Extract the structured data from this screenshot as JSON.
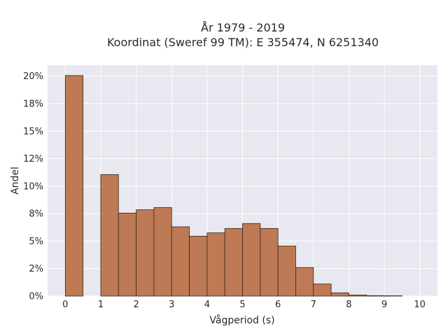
{
  "chart_data": {
    "type": "bar",
    "title_line1": "År 1979 - 2019",
    "title_line2": "Koordinat (Sweref 99 TM): E 355474, N 6251340",
    "xlabel": "Vågperiod (s)",
    "ylabel": "Andel",
    "xlim": [
      -0.5,
      10.5
    ],
    "ylim": [
      0,
      0.21
    ],
    "x_ticks": [
      0,
      1,
      2,
      3,
      4,
      5,
      6,
      7,
      8,
      9,
      10
    ],
    "x_tick_labels": [
      "0",
      "1",
      "2",
      "3",
      "4",
      "5",
      "6",
      "7",
      "8",
      "9",
      "10"
    ],
    "y_ticks": [
      0,
      0.025,
      0.05,
      0.075,
      0.1,
      0.125,
      0.15,
      0.175,
      0.2
    ],
    "y_tick_labels": [
      "0%",
      "2%",
      "5%",
      "8%",
      "10%",
      "12%",
      "15%",
      "18%",
      "20%"
    ],
    "bin_width": 0.5,
    "bins": [
      {
        "x0": 0.0,
        "value": 0.2005
      },
      {
        "x0": 1.0,
        "value": 0.1105
      },
      {
        "x0": 1.5,
        "value": 0.0755
      },
      {
        "x0": 2.0,
        "value": 0.0785
      },
      {
        "x0": 2.5,
        "value": 0.0805
      },
      {
        "x0": 3.0,
        "value": 0.063
      },
      {
        "x0": 3.5,
        "value": 0.0545
      },
      {
        "x0": 4.0,
        "value": 0.0575
      },
      {
        "x0": 4.5,
        "value": 0.0615
      },
      {
        "x0": 5.0,
        "value": 0.066
      },
      {
        "x0": 5.5,
        "value": 0.0615
      },
      {
        "x0": 6.0,
        "value": 0.0455
      },
      {
        "x0": 6.5,
        "value": 0.026
      },
      {
        "x0": 7.0,
        "value": 0.011
      },
      {
        "x0": 7.5,
        "value": 0.003
      },
      {
        "x0": 8.0,
        "value": 0.001
      },
      {
        "x0": 8.5,
        "value": 0.0004
      },
      {
        "x0": 9.0,
        "value": 0.0003
      }
    ],
    "grid": true,
    "colors": {
      "bar_fill": "#bd7a55",
      "bar_edge": "#3a2618",
      "plot_bg": "#e8e8f0",
      "grid": "#ffffff"
    }
  }
}
